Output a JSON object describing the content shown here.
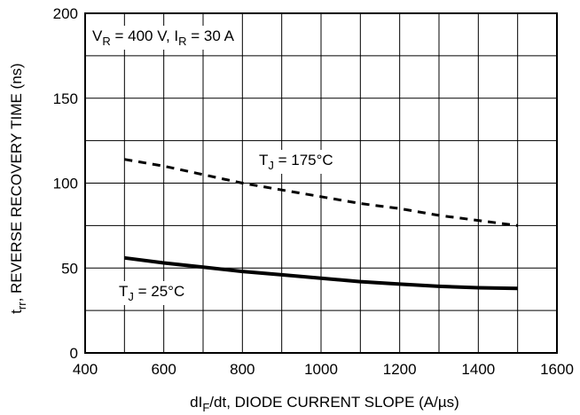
{
  "chart_data": {
    "type": "line",
    "title": "",
    "xlabel": "dIF/dt, DIODE CURRENT SLOPE (A/µs)",
    "xlabel_parts": {
      "pre": "dI",
      "sub": "F",
      "post": "/dt, DIODE CURRENT SLOPE (A/µs)"
    },
    "ylabel": "trr, REVERSE RECOVERY TIME (ns)",
    "ylabel_parts": {
      "pre": "t",
      "sub": "rr",
      "post": ", REVERSE RECOVERY TIME (ns)"
    },
    "xlim": [
      400,
      1600
    ],
    "ylim": [
      0,
      200
    ],
    "xticks": [
      400,
      600,
      800,
      1000,
      1200,
      1400,
      1600
    ],
    "yticks": [
      0,
      50,
      100,
      150,
      200
    ],
    "x_minor_step": 100,
    "y_minor_step": 25,
    "grid": true,
    "conditions": {
      "text": "VR = 400 V, IR = 30 A",
      "parts": [
        {
          "t": "V"
        },
        {
          "t": "R",
          "sub": true
        },
        {
          "t": " = 400 V, I"
        },
        {
          "t": "R",
          "sub": true
        },
        {
          "t": " = 30 A"
        }
      ]
    },
    "series": [
      {
        "label": "TJ = 175°C",
        "label_parts": [
          {
            "t": "T"
          },
          {
            "t": "J",
            "sub": true
          },
          {
            "t": " = 175°C"
          }
        ],
        "style": "dashed",
        "x": [
          500,
          600,
          700,
          800,
          900,
          1000,
          1100,
          1200,
          1300,
          1400,
          1500
        ],
        "y": [
          114,
          110,
          105,
          100,
          96,
          92,
          88,
          85,
          81,
          78,
          75
        ]
      },
      {
        "label": "TJ = 25°C",
        "label_parts": [
          {
            "t": "T"
          },
          {
            "t": "J",
            "sub": true
          },
          {
            "t": " = 25°C"
          }
        ],
        "style": "solid",
        "x": [
          500,
          600,
          700,
          800,
          900,
          1000,
          1100,
          1200,
          1300,
          1400,
          1500
        ],
        "y": [
          56,
          53,
          50.5,
          48,
          46,
          44,
          42,
          40.5,
          39.2,
          38.4,
          38
        ]
      }
    ]
  }
}
